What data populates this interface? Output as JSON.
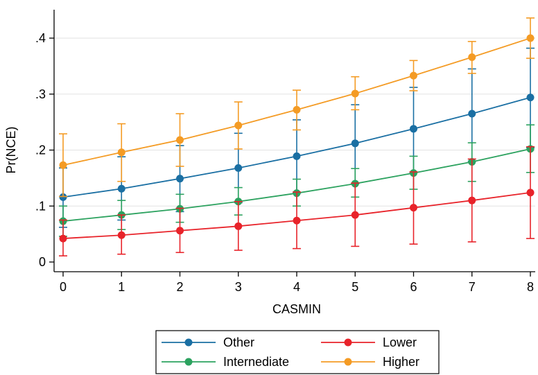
{
  "chart_data": {
    "type": "line",
    "xlabel": "CASMIN",
    "ylabel": "Pr(NCE)",
    "x": [
      0,
      1,
      2,
      3,
      4,
      5,
      6,
      7,
      8
    ],
    "xlim": [
      0,
      8
    ],
    "ylim": [
      0,
      0.42
    ],
    "yticks": [
      0,
      0.1,
      0.2,
      0.3,
      0.4
    ],
    "ytick_labels": [
      "0",
      ".1",
      ".2",
      ".3",
      ".4"
    ],
    "xtick_labels": [
      "0",
      "1",
      "2",
      "3",
      "4",
      "5",
      "6",
      "7",
      "8"
    ],
    "grid": true,
    "legend_position": "bottom",
    "series": [
      {
        "name": "Other",
        "color": "#1a6fa3",
        "values": [
          0.116,
          0.131,
          0.149,
          0.168,
          0.189,
          0.212,
          0.238,
          0.265,
          0.294
        ],
        "lower": [
          0.062,
          0.075,
          0.09,
          0.106,
          0.123,
          0.14,
          0.16,
          0.18,
          0.204
        ],
        "upper": [
          0.168,
          0.188,
          0.208,
          0.23,
          0.254,
          0.281,
          0.312,
          0.345,
          0.382
        ]
      },
      {
        "name": "Internediate",
        "color": "#2ca25f",
        "values": [
          0.073,
          0.084,
          0.095,
          0.108,
          0.123,
          0.14,
          0.159,
          0.179,
          0.202
        ],
        "lower": [
          0.046,
          0.058,
          0.071,
          0.084,
          0.1,
          0.116,
          0.13,
          0.144,
          0.16
        ],
        "upper": [
          0.1,
          0.11,
          0.121,
          0.133,
          0.148,
          0.167,
          0.189,
          0.213,
          0.245
        ]
      },
      {
        "name": "Lower",
        "color": "#e8232a",
        "values": [
          0.042,
          0.048,
          0.056,
          0.064,
          0.074,
          0.084,
          0.097,
          0.11,
          0.124
        ],
        "lower": [
          0.011,
          0.014,
          0.017,
          0.021,
          0.024,
          0.028,
          0.032,
          0.036,
          0.042
        ],
        "upper": [
          0.075,
          0.084,
          0.096,
          0.108,
          0.125,
          0.141,
          0.161,
          0.184,
          0.206
        ]
      },
      {
        "name": "Higher",
        "color": "#f49b24",
        "values": [
          0.173,
          0.196,
          0.218,
          0.244,
          0.272,
          0.301,
          0.333,
          0.366,
          0.4
        ],
        "lower": [
          0.117,
          0.144,
          0.171,
          0.202,
          0.236,
          0.272,
          0.306,
          0.337,
          0.364
        ],
        "upper": [
          0.229,
          0.247,
          0.265,
          0.286,
          0.307,
          0.331,
          0.36,
          0.394,
          0.436
        ]
      }
    ],
    "legend_order": [
      0,
      2,
      1,
      3
    ]
  }
}
